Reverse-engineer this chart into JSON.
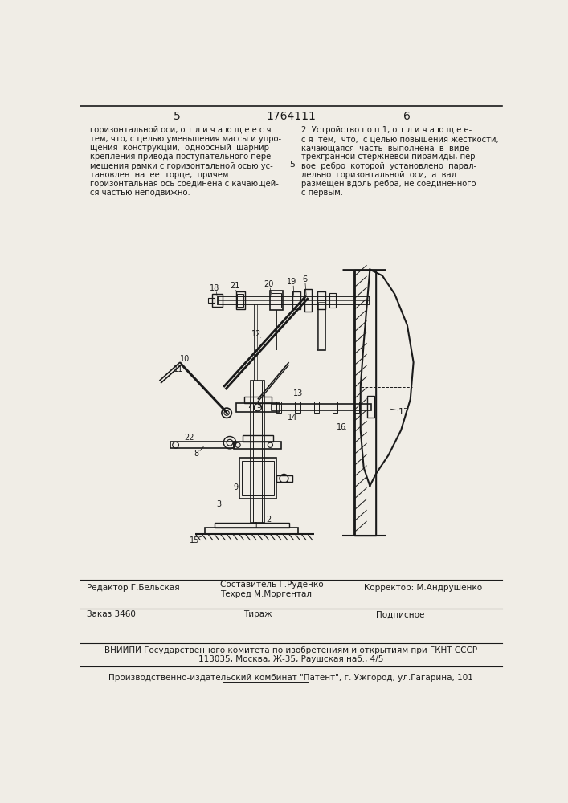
{
  "page_number_left": "5",
  "patent_number": "1764111",
  "page_number_right": "6",
  "bg_color": "#f0ede6",
  "text_color": "#1a1a1a",
  "left_col_lines": [
    "горизонтальной оси, о т л и ч а ю щ е е с я",
    "тем, что, с целью уменьшения массы и упро-",
    "щения  конструкции,  одноосный  шарнир",
    "крепления привода поступательного пере-",
    "мещения рамки с горизонтальной осью ус-",
    "тановлен  на  ее  торце,  причем",
    "горизонтальная ось соединена с качающей-",
    "ся частью неподвижно."
  ],
  "right_col_lines": [
    "2. Устройство по п.1, о т л и ч а ю щ е е-",
    "с я  тем,  что,  с целью повышения жесткости,",
    "качающаяся  часть  выполнена  в  виде",
    "трехгранной стержневой пирамиды, пер-",
    "вое  ребро  которой  установлено  парал-",
    "лельно  горизонтальной  оси,  а  вал",
    "размещен вдоль ребра, не соединенного",
    "с первым."
  ],
  "bottom_section": {
    "editor_label": "Редактор Г.Бельская",
    "composer_label": "Составитель Г.Руденко",
    "corrector_label": "Корректор: М.Андрушенко",
    "techred_label": "Техред М.Моргентал",
    "order_label": "Заказ 3460",
    "tirazh_label": "Тираж",
    "podpisnoe_label": "Подписное",
    "vniiipi_line1": "ВНИИПИ Государственного комитета по изобретениям и открытиям при ГКНТ СССР",
    "vniiipi_line2": "113035, Москва, Ж-35, Раушская наб., 4/5",
    "factory_line": "Производственно-издательский комбинат \"Патент\", г. Ужгород, ул.Гагарина, 101"
  }
}
